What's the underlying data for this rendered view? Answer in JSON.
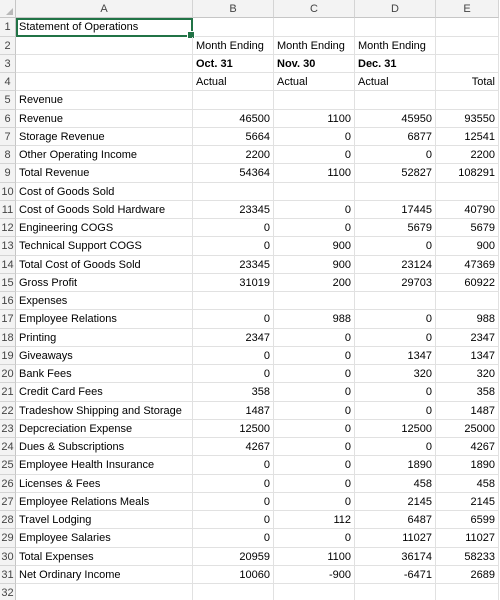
{
  "columns": [
    "A",
    "B",
    "C",
    "D",
    "E"
  ],
  "row_numbers": [
    "1",
    "2",
    "3",
    "4",
    "5",
    "6",
    "7",
    "8",
    "9",
    "10",
    "11",
    "12",
    "13",
    "14",
    "15",
    "16",
    "17",
    "18",
    "19",
    "20",
    "21",
    "22",
    "23",
    "24",
    "25",
    "26",
    "27",
    "28",
    "29",
    "30",
    "31",
    "32"
  ],
  "rows": [
    [
      "Statement of Operations",
      "",
      "",
      "",
      ""
    ],
    [
      "",
      "Month Ending",
      "Month Ending",
      "Month Ending",
      ""
    ],
    [
      "",
      "Oct. 31",
      "Nov. 30",
      "Dec. 31",
      ""
    ],
    [
      "",
      "Actual",
      "Actual",
      "Actual",
      "Total"
    ],
    [
      "Revenue",
      "",
      "",
      "",
      ""
    ],
    [
      "Revenue",
      "46500",
      "1100",
      "45950",
      "93550"
    ],
    [
      "Storage Revenue",
      "5664",
      "0",
      "6877",
      "12541"
    ],
    [
      "Other Operating Income",
      "2200",
      "0",
      "0",
      "2200"
    ],
    [
      "Total Revenue",
      "54364",
      "1100",
      "52827",
      "108291"
    ],
    [
      "Cost of Goods Sold",
      "",
      "",
      "",
      ""
    ],
    [
      "Cost of Goods Sold Hardware",
      "23345",
      "0",
      "17445",
      "40790"
    ],
    [
      "Engineering COGS",
      "0",
      "0",
      "5679",
      "5679"
    ],
    [
      "Technical Support COGS",
      "0",
      "900",
      "0",
      "900"
    ],
    [
      "Total Cost of Goods Sold",
      "23345",
      "900",
      "23124",
      "47369"
    ],
    [
      "Gross Profit",
      "31019",
      "200",
      "29703",
      "60922"
    ],
    [
      "Expenses",
      "",
      "",
      "",
      ""
    ],
    [
      "Employee Relations",
      "0",
      "988",
      "0",
      "988"
    ],
    [
      "Printing",
      "2347",
      "0",
      "0",
      "2347"
    ],
    [
      "Giveaways",
      "0",
      "0",
      "1347",
      "1347"
    ],
    [
      "Bank Fees",
      "0",
      "0",
      "320",
      "320"
    ],
    [
      "Credit Card Fees",
      "358",
      "0",
      "0",
      "358"
    ],
    [
      "Tradeshow Shipping and Storage",
      "1487",
      "0",
      "0",
      "1487"
    ],
    [
      "Depcreciation Expense",
      "12500",
      "0",
      "12500",
      "25000"
    ],
    [
      "Dues & Subscriptions",
      "4267",
      "0",
      "0",
      "4267"
    ],
    [
      "Employee Health Insurance",
      "0",
      "0",
      "1890",
      "1890"
    ],
    [
      "Licenses & Fees",
      "0",
      "0",
      "458",
      "458"
    ],
    [
      "Employee Relations Meals",
      "0",
      "0",
      "2145",
      "2145"
    ],
    [
      "Travel Lodging",
      "0",
      "112",
      "6487",
      "6599"
    ],
    [
      "Employee Salaries",
      "0",
      "0",
      "11027",
      "11027"
    ],
    [
      "Total Expenses",
      "20959",
      "1100",
      "36174",
      "58233"
    ],
    [
      "Net Ordinary Income",
      "10060",
      "-900",
      "-6471",
      "2689"
    ],
    [
      "",
      "",
      "",
      "",
      ""
    ]
  ],
  "selected_cell": "A1",
  "accent_color": "#217346"
}
